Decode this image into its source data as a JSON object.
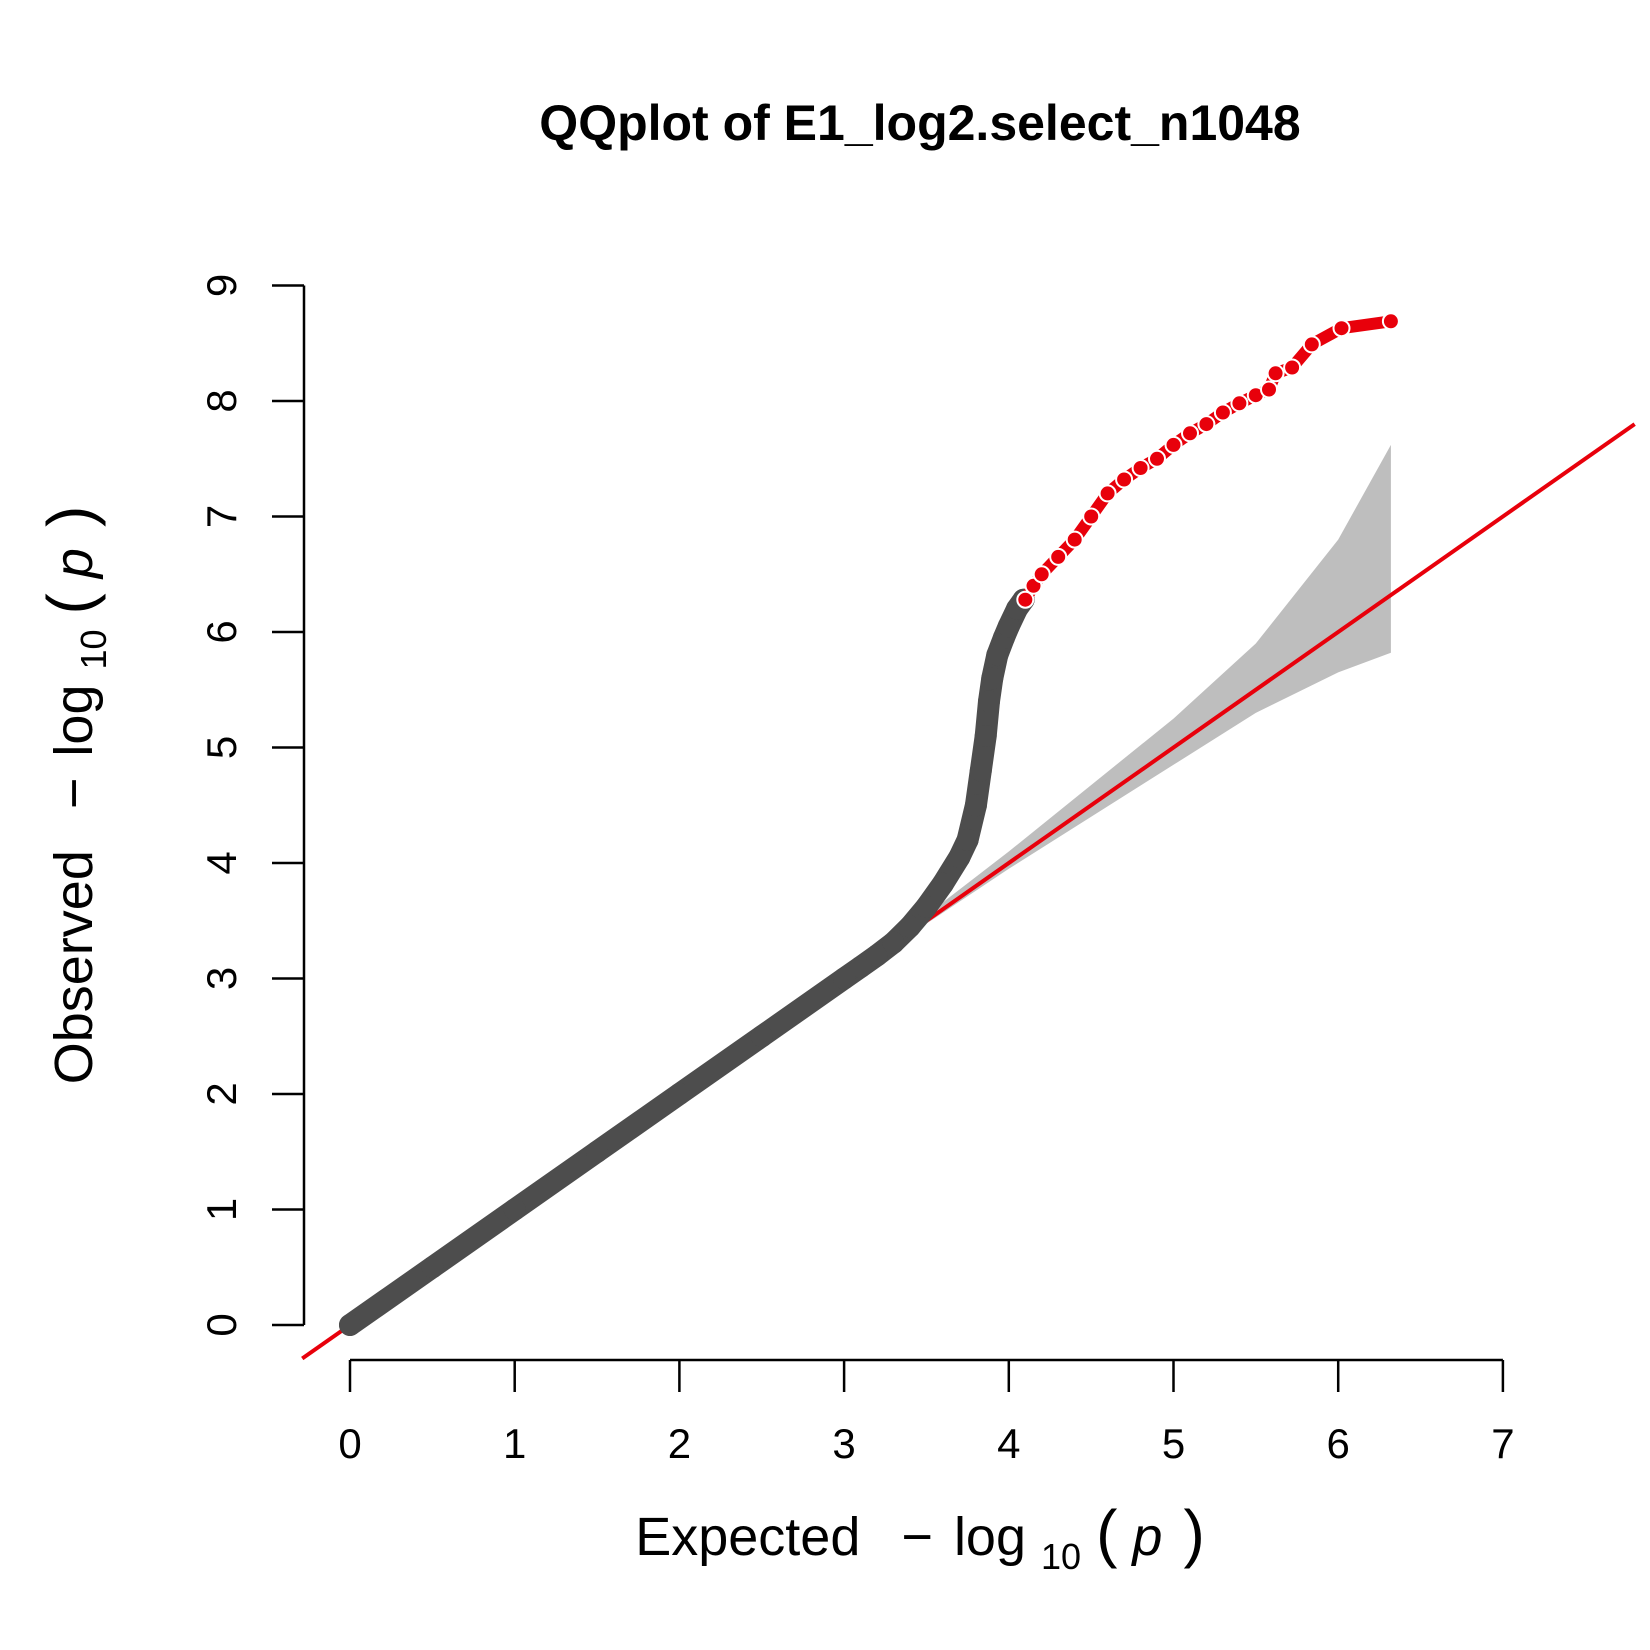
{
  "chart_data": {
    "type": "scatter",
    "title": "QQplot of E1_log2.select_n1048",
    "xlabel": {
      "prefix": "Expected",
      "minus": "−",
      "log": "log",
      "sub": "10",
      "open": "(",
      "var": "p",
      "close": ")"
    },
    "ylabel": {
      "prefix": "Observed",
      "minus": "−",
      "log": "log",
      "sub": "10",
      "open": "(",
      "var": "p",
      "close": ")"
    },
    "xlim": [
      0,
      7
    ],
    "ylim": [
      0,
      9
    ],
    "x_ticks": [
      "0",
      "1",
      "2",
      "3",
      "4",
      "5",
      "6",
      "7"
    ],
    "y_ticks": [
      "0",
      "1",
      "2",
      "3",
      "4",
      "5",
      "6",
      "7",
      "8",
      "9"
    ],
    "reference_line": {
      "slope": 1,
      "intercept": 0,
      "color": "#e8000b"
    },
    "confidence_band": {
      "color": "#bebebe",
      "x": [
        0,
        1,
        2,
        3,
        4,
        5,
        5.5,
        6.0,
        6.32
      ],
      "upper": [
        0,
        1.0,
        2.0,
        3.0,
        4.1,
        5.25,
        5.9,
        6.8,
        7.62
      ],
      "lower": [
        0,
        1.0,
        2.0,
        3.0,
        3.95,
        4.85,
        5.3,
        5.65,
        5.82
      ]
    },
    "series": [
      {
        "color": "#4d4d4d",
        "points": [
          [
            0.0,
            0.0
          ],
          [
            0.5,
            0.5
          ],
          [
            1.0,
            1.0
          ],
          [
            1.5,
            1.5
          ],
          [
            2.0,
            2.0
          ],
          [
            2.5,
            2.5
          ],
          [
            3.0,
            3.0
          ],
          [
            3.1,
            3.1
          ],
          [
            3.2,
            3.2
          ],
          [
            3.3,
            3.31
          ],
          [
            3.4,
            3.45
          ],
          [
            3.5,
            3.62
          ],
          [
            3.6,
            3.82
          ],
          [
            3.7,
            4.05
          ],
          [
            3.75,
            4.2
          ],
          [
            3.8,
            4.5
          ],
          [
            3.83,
            4.8
          ],
          [
            3.86,
            5.1
          ],
          [
            3.88,
            5.4
          ],
          [
            3.9,
            5.6
          ],
          [
            3.93,
            5.8
          ],
          [
            3.97,
            5.95
          ],
          [
            4.0,
            6.05
          ],
          [
            4.05,
            6.2
          ],
          [
            4.09,
            6.28
          ]
        ]
      },
      {
        "color": "#e8000b",
        "points": [
          [
            4.1,
            6.28
          ],
          [
            4.15,
            6.4
          ],
          [
            4.2,
            6.5
          ],
          [
            4.3,
            6.65
          ],
          [
            4.4,
            6.8
          ],
          [
            4.5,
            7.0
          ],
          [
            4.6,
            7.2
          ],
          [
            4.7,
            7.32
          ],
          [
            4.8,
            7.42
          ],
          [
            4.9,
            7.5
          ],
          [
            5.0,
            7.62
          ],
          [
            5.1,
            7.72
          ],
          [
            5.2,
            7.8
          ],
          [
            5.3,
            7.9
          ],
          [
            5.4,
            7.98
          ],
          [
            5.5,
            8.05
          ],
          [
            5.58,
            8.1
          ],
          [
            5.62,
            8.24
          ],
          [
            5.72,
            8.29
          ],
          [
            5.84,
            8.49
          ],
          [
            6.02,
            8.63
          ],
          [
            6.32,
            8.69
          ]
        ]
      }
    ]
  }
}
